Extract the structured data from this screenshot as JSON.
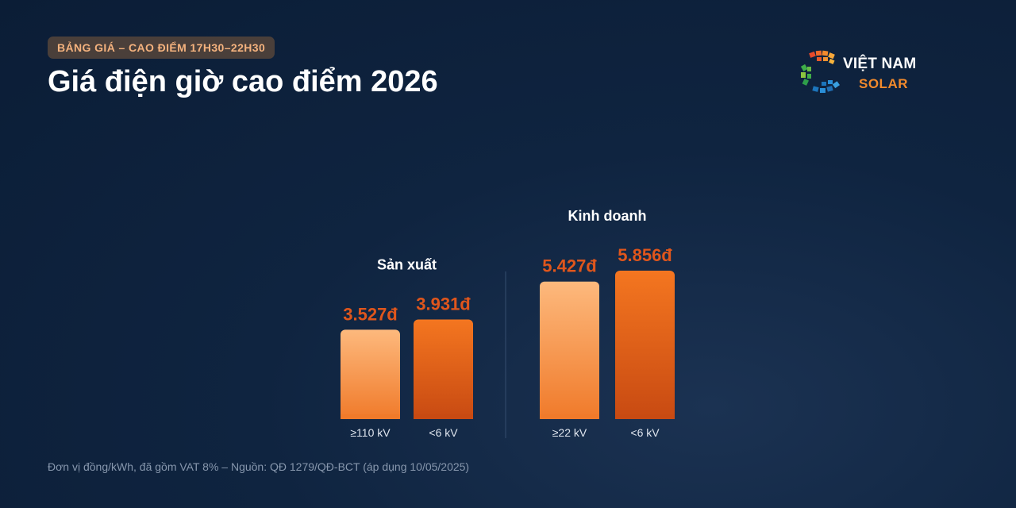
{
  "header": {
    "badge": "BẢNG GIÁ – CAO ĐIỂM 17H30–22H30",
    "title": "Giá điện giờ cao điểm 2026"
  },
  "logo": {
    "name": "VIỆT NAM",
    "sub": "SOLAR"
  },
  "chart_data": {
    "type": "bar",
    "title": "",
    "xlabel": "",
    "ylabel": "",
    "unit_suffix": "đ",
    "ylim": [
      0,
      5856
    ],
    "groups": [
      {
        "name": "Sản xuất",
        "categories": [
          "≥110 kV",
          "<6 kV"
        ],
        "values": [
          3527,
          3931
        ],
        "labels": [
          "3.527đ",
          "3.931đ"
        ]
      },
      {
        "name": "Kinh doanh",
        "categories": [
          "≥22 kV",
          "<6 kV"
        ],
        "values": [
          5427,
          5856
        ],
        "labels": [
          "5.427đ",
          "5.856đ"
        ]
      }
    ],
    "colors": {
      "light_top": "#fdb97d",
      "light_bottom": "#f07a2a",
      "dark_top": "#f47620",
      "dark_bottom": "#c84a12",
      "value_label": "#e0561c",
      "category_label": "#dfe5ee",
      "group_label": "#ffffff",
      "divider": "#2b4262"
    },
    "legend": "none",
    "grid": false
  },
  "footnote": "Đơn vị đồng/kWh, đã gồm VAT 8% – Nguồn: QĐ 1279/QĐ-BCT (áp dụng 10/05/2025)"
}
